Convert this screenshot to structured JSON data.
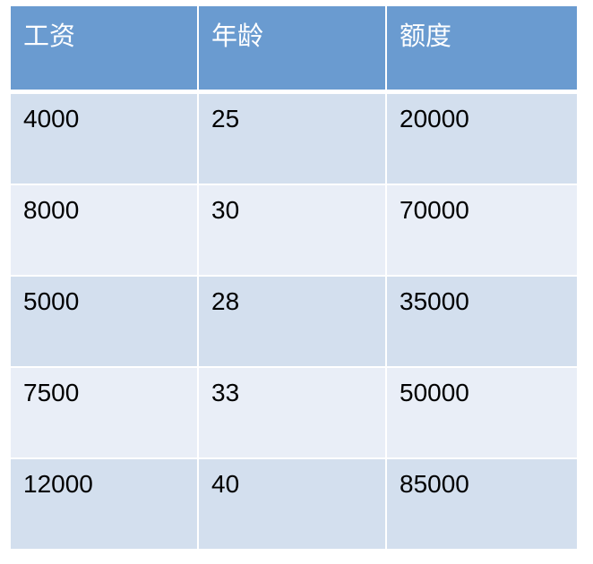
{
  "table": {
    "headers": [
      "工资",
      "年龄",
      "额度"
    ],
    "rows": [
      [
        "4000",
        "25",
        "20000"
      ],
      [
        "8000",
        "30",
        "70000"
      ],
      [
        "5000",
        "28",
        "35000"
      ],
      [
        "7500",
        "33",
        "50000"
      ],
      [
        "12000",
        "40",
        "85000"
      ]
    ]
  },
  "colors": {
    "header": "#6a9bd0",
    "row_odd": "#d3dfee",
    "row_even": "#e9eef7"
  }
}
